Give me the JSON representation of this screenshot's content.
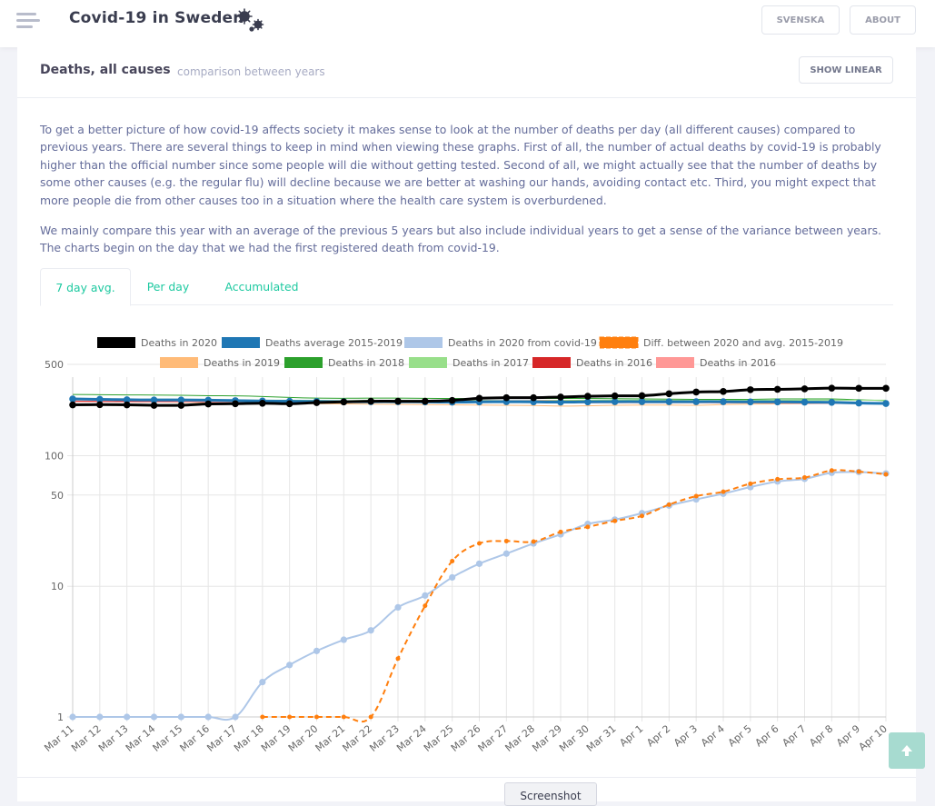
{
  "header": {
    "title": "Covid-19 in Sweden",
    "buttons": {
      "svenska": "SVENSKA",
      "about": "ABOUT"
    }
  },
  "card": {
    "title": "Deaths, all causes",
    "subtitle": "comparison between years",
    "show_linear": "SHOW LINEAR",
    "paragraph1": "To get a better picture of how covid-19 affects society it makes sense to look at the number of deaths per day (all different causes) compared to previous years. There are several things to keep in mind when viewing these graphs. First of all, the number of actual deaths by covid-19 is probably higher than the official number since some people will die without getting tested. Second of all, we might actually see that the number of deaths by some other causes (e.g. the regular flu) will decline because we are better at washing our hands, avoiding contact etc. Third, you might expect that more people die from other causes too in a situation where the health care system is overburdened.",
    "paragraph2": "We mainly compare this year with an average of the previous 5 years but also include individual years to get a sense of the variance between years. The charts begin on the day that we had the first registered death from covid-19.",
    "tabs": [
      "7 day avg.",
      "Per day",
      "Accumulated"
    ],
    "active_tab": 0
  },
  "footer": {
    "screenshot_label": "Screenshot"
  },
  "icons": {
    "menu": "hamburger-icon",
    "virus": "virus-icon",
    "to_top": "arrow-up-icon"
  },
  "colors": {
    "accent": "#1dc9a0",
    "title": "#48465b",
    "text": "#646c9a"
  },
  "chart_data": {
    "type": "line",
    "y_scale": "log",
    "ylim": [
      1,
      600
    ],
    "y_ticks": [
      "500",
      "100",
      "50",
      "10",
      "1"
    ],
    "y_tick_values": [
      500,
      100,
      50,
      10,
      1
    ],
    "categories": [
      "Mar 11",
      "Mar 12",
      "Mar 13",
      "Mar 14",
      "Mar 15",
      "Mar 16",
      "Mar 17",
      "Mar 18",
      "Mar 19",
      "Mar 20",
      "Mar 21",
      "Mar 22",
      "Mar 23",
      "Mar 24",
      "Mar 25",
      "Mar 26",
      "Mar 27",
      "Mar 28",
      "Mar 29",
      "Mar 30",
      "Mar 31",
      "Apr 1",
      "Apr 2",
      "Apr 3",
      "Apr 4",
      "Apr 5",
      "Apr 6",
      "Apr 7",
      "Apr 8",
      "Apr 9",
      "Apr 10"
    ],
    "grid": true,
    "legend_position": "top",
    "series": [
      {
        "name": "Deaths in 2020",
        "color": "#000000",
        "style": "solid",
        "width": 3,
        "points": true,
        "values": [
          245,
          246,
          245,
          243,
          243,
          249,
          250,
          252,
          250,
          255,
          258,
          261,
          261,
          261,
          265,
          275,
          278,
          278,
          281,
          285,
          287,
          288,
          298,
          307,
          310,
          320,
          322,
          325,
          329,
          328,
          328
        ]
      },
      {
        "name": "Deaths average 2015-2019",
        "color": "#1f77b4",
        "style": "solid",
        "width": 3,
        "points": true,
        "values": [
          272,
          270,
          268,
          267,
          267,
          266,
          264,
          262,
          261,
          260,
          259,
          259,
          259,
          258,
          257,
          258,
          259,
          258,
          257,
          258,
          259,
          259,
          259,
          259,
          259,
          258,
          258,
          257,
          256,
          253,
          251
        ]
      },
      {
        "name": "Deaths in 2020 from covid-19",
        "color": "#aec7e8",
        "style": "solid",
        "width": 2,
        "points": true,
        "values": [
          1,
          1,
          1,
          1,
          1,
          1,
          1,
          1.85,
          2.5,
          3.2,
          3.9,
          4.6,
          6.9,
          8.5,
          11.7,
          14.9,
          17.8,
          21.3,
          25.0,
          30.0,
          32.4,
          36.3,
          41.5,
          46.3,
          51.2,
          57.5,
          63.5,
          66.5,
          74.0,
          75.0,
          73.0
        ]
      },
      {
        "name": "Diff. between 2020 and avg. 2015-2019",
        "color": "#ff7f0e",
        "style": "dashed",
        "width": 2,
        "points": true,
        "values": [
          null,
          null,
          null,
          null,
          null,
          null,
          null,
          1,
          1,
          1,
          1,
          1,
          2.8,
          7.1,
          15.6,
          21.3,
          22.2,
          22.0,
          26.1,
          28.5,
          31.7,
          34.6,
          42.2,
          49.0,
          53.0,
          61.0,
          66.0,
          68.0,
          77.0,
          75.5,
          72.0
        ]
      },
      {
        "name": "Deaths in 2019",
        "color": "#ffbb78",
        "style": "solid",
        "width": 1,
        "points": false,
        "values": [
          262,
          260,
          258,
          257,
          256,
          255,
          253,
          252,
          251,
          250,
          249,
          248,
          247,
          246,
          245,
          244,
          243,
          242,
          240,
          241,
          243,
          244,
          244,
          243,
          246,
          248,
          249,
          250,
          251,
          252,
          250
        ]
      },
      {
        "name": "Deaths in 2018",
        "color": "#2ca02c",
        "style": "solid",
        "width": 1,
        "points": false,
        "values": [
          294,
          293,
          292,
          291,
          290,
          288,
          287,
          284,
          279,
          276,
          275,
          276,
          276,
          275,
          274,
          274,
          275,
          275,
          274,
          274,
          273,
          272,
          271,
          270,
          270,
          270,
          272,
          272,
          272,
          268,
          264
        ]
      },
      {
        "name": "Deaths in 2017",
        "color": "#98df8a",
        "style": "solid",
        "width": 1,
        "points": false,
        "values": [
          270,
          270,
          270,
          271,
          270,
          268,
          267,
          266,
          266,
          265,
          264,
          265,
          265,
          265,
          266,
          265,
          264,
          264,
          265,
          266,
          266,
          266,
          266,
          265,
          265,
          266,
          265,
          266,
          266,
          266,
          266
        ]
      },
      {
        "name": "Deaths in 2016",
        "color": "#d62728",
        "style": "solid",
        "width": 1,
        "points": false,
        "values": [
          262,
          261,
          261,
          261,
          262,
          262,
          262,
          262,
          261,
          262,
          262,
          262,
          261,
          261,
          262,
          262,
          263,
          263,
          262,
          262,
          262,
          262,
          262,
          262,
          262,
          260,
          258,
          256,
          254,
          251,
          250
        ]
      },
      {
        "name": "Deaths in 2016",
        "color": "#ff9896",
        "style": "solid",
        "width": 1,
        "points": false,
        "values": [
          258,
          258,
          257,
          257,
          257,
          257,
          256,
          256,
          256,
          256,
          255,
          255,
          255,
          255,
          255,
          255,
          256,
          255,
          255,
          254,
          254,
          254,
          254,
          254,
          253,
          253,
          252,
          251,
          251,
          250,
          250
        ]
      }
    ]
  }
}
